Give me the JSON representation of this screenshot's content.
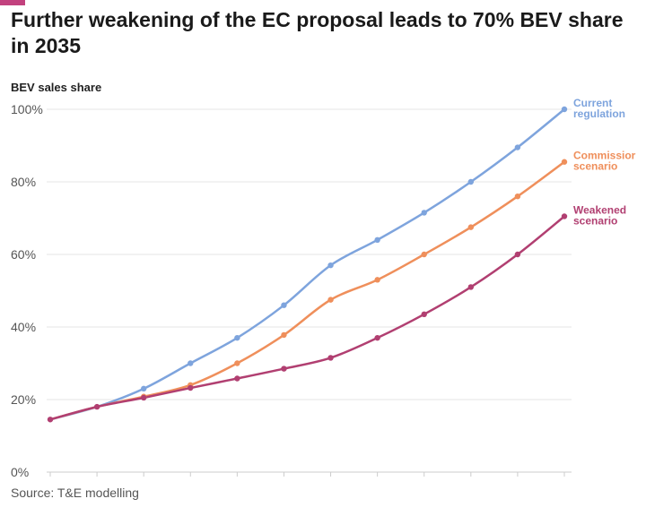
{
  "colors": {
    "accent": "#c2417e",
    "grid": "#e6e6e6",
    "baseline": "#cccccc"
  },
  "source": "Source: T&E modelling",
  "chart_data": {
    "type": "line",
    "title": "Further weakening of the EC proposal leads to 70% BEV share in 2035",
    "ylabel": "BEV sales share",
    "xlabel": "",
    "ylim": [
      0,
      100
    ],
    "yticks": [
      {
        "value": 0,
        "label": "0%"
      },
      {
        "value": 20,
        "label": "20%"
      },
      {
        "value": 40,
        "label": "40%"
      },
      {
        "value": 60,
        "label": "60%"
      },
      {
        "value": 80,
        "label": "80%"
      },
      {
        "value": 100,
        "label": "100%"
      }
    ],
    "x": [
      0,
      1,
      2,
      3,
      4,
      5,
      6,
      7,
      8,
      9,
      10,
      11
    ],
    "series": [
      {
        "name": "Current regulation",
        "label_lines": [
          "Current",
          "regulation"
        ],
        "color": "#7ea4dd",
        "values": [
          14.5,
          18,
          23,
          30,
          37,
          46,
          57,
          64,
          71.5,
          80,
          89.5,
          100
        ],
        "marker_from": 2
      },
      {
        "name": "Commissior scenario",
        "label_lines": [
          "Commissior",
          "scenario"
        ],
        "color": "#ef8f5b",
        "values": [
          14.5,
          18,
          20.8,
          24,
          30,
          37.8,
          47.5,
          53,
          60,
          67.5,
          76,
          85.5
        ],
        "marker_from": 2
      },
      {
        "name": "Weakened scenario",
        "label_lines": [
          "Weakened",
          "scenario"
        ],
        "color": "#b13f71",
        "values": [
          14.5,
          18,
          20.5,
          23.2,
          25.8,
          28.5,
          31.5,
          37,
          43.5,
          51,
          60,
          70.5
        ],
        "marker_from": 0
      }
    ]
  }
}
